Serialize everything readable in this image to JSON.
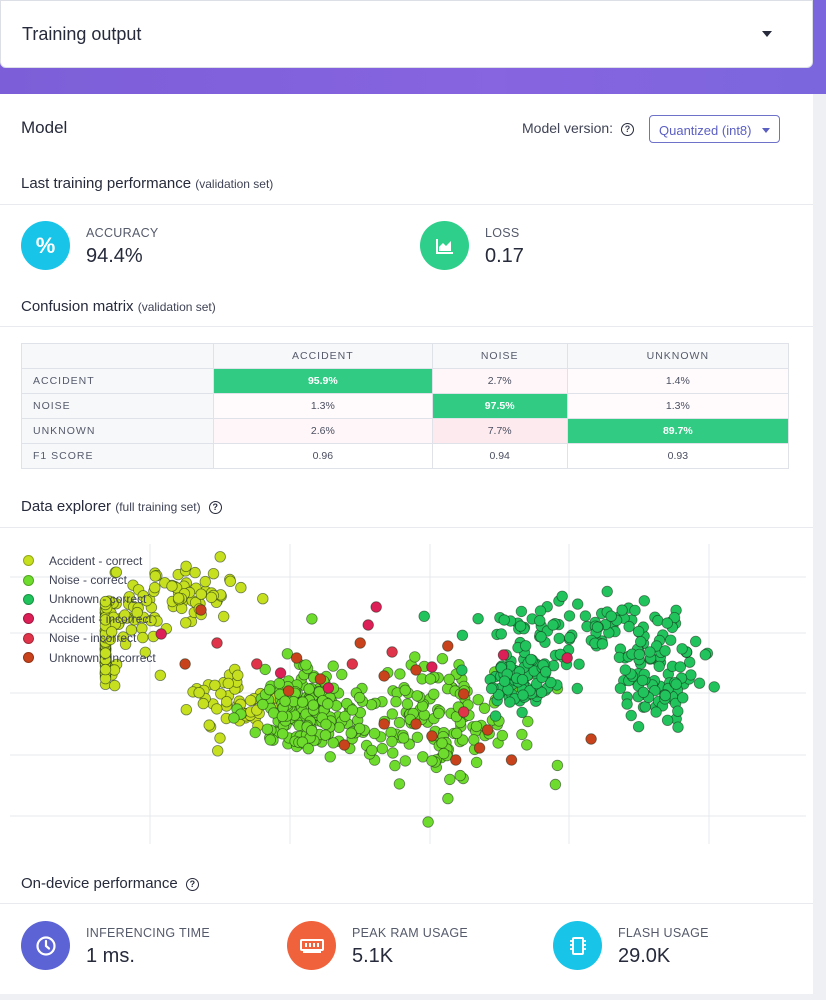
{
  "header": {
    "title": "Training output"
  },
  "model": {
    "title": "Model",
    "version_label": "Model version:",
    "version_value": "Quantized (int8)"
  },
  "last_training": {
    "title": "Last training performance",
    "subtitle": "(validation set)",
    "accuracy_label": "ACCURACY",
    "accuracy_value": "94.4%",
    "loss_label": "LOSS",
    "loss_value": "0.17"
  },
  "confusion": {
    "title": "Confusion matrix",
    "subtitle": "(validation set)",
    "columns": [
      "ACCIDENT",
      "NOISE",
      "UNKNOWN"
    ],
    "rows": [
      {
        "label": "ACCIDENT",
        "cells": [
          "95.9%",
          "2.7%",
          "1.4%"
        ]
      },
      {
        "label": "NOISE",
        "cells": [
          "1.3%",
          "97.5%",
          "1.3%"
        ]
      },
      {
        "label": "UNKNOWN",
        "cells": [
          "2.6%",
          "7.7%",
          "89.7%"
        ]
      },
      {
        "label": "F1 SCORE",
        "cells": [
          "0.96",
          "0.94",
          "0.93"
        ]
      }
    ]
  },
  "explorer": {
    "title": "Data explorer",
    "subtitle": "(full training set)",
    "legend": [
      {
        "label": "Accident - correct",
        "color": "#c6df1f"
      },
      {
        "label": "Noise - correct",
        "color": "#6edc2c"
      },
      {
        "label": "Unknown - correct",
        "color": "#21c35c"
      },
      {
        "label": "Accident - incorrect",
        "color": "#dc1f56"
      },
      {
        "label": "Noise - incorrect",
        "color": "#e0344b"
      },
      {
        "label": "Unknown - incorrect",
        "color": "#c8431c"
      }
    ]
  },
  "chart_data": {
    "type": "scatter",
    "title": "Data explorer (full training set)",
    "xlabel": "",
    "ylabel": "",
    "series": [
      {
        "name": "Accident - correct",
        "color": "#c6df1f",
        "cluster": [
          [
            0.09,
            0.62,
            0.06,
            0.09
          ],
          [
            0.22,
            0.84,
            0.07,
            0.08
          ],
          [
            0.14,
            0.75,
            0.07,
            0.08
          ],
          [
            0.28,
            0.48,
            0.06,
            0.08
          ]
        ],
        "count": 230
      },
      {
        "name": "Noise - correct",
        "color": "#6edc2c",
        "cluster": [
          [
            0.52,
            0.42,
            0.12,
            0.17
          ],
          [
            0.37,
            0.45,
            0.06,
            0.12
          ]
        ],
        "count": 330
      },
      {
        "name": "Unknown - correct",
        "color": "#21c35c",
        "cluster": [
          [
            0.72,
            0.72,
            0.11,
            0.09
          ],
          [
            0.82,
            0.55,
            0.06,
            0.14
          ],
          [
            0.64,
            0.55,
            0.05,
            0.09
          ]
        ],
        "count": 260
      },
      {
        "name": "Accident - incorrect",
        "color": "#dc1f56",
        "points": [
          [
            0.46,
            0.79
          ],
          [
            0.34,
            0.57
          ],
          [
            0.53,
            0.59
          ],
          [
            0.62,
            0.63
          ],
          [
            0.7,
            0.62
          ],
          [
            0.19,
            0.7
          ],
          [
            0.4,
            0.52
          ],
          [
            0.45,
            0.73
          ]
        ]
      },
      {
        "name": "Noise - incorrect",
        "color": "#e0344b",
        "points": [
          [
            0.43,
            0.6
          ],
          [
            0.48,
            0.64
          ],
          [
            0.57,
            0.44
          ],
          [
            0.31,
            0.6
          ],
          [
            0.26,
            0.67
          ]
        ]
      },
      {
        "name": "Unknown - incorrect",
        "color": "#c8431c",
        "points": [
          [
            0.22,
            0.6
          ],
          [
            0.36,
            0.62
          ],
          [
            0.39,
            0.55
          ],
          [
            0.47,
            0.56
          ],
          [
            0.51,
            0.58
          ],
          [
            0.55,
            0.66
          ],
          [
            0.57,
            0.5
          ],
          [
            0.51,
            0.4
          ],
          [
            0.47,
            0.4
          ],
          [
            0.42,
            0.33
          ],
          [
            0.53,
            0.36
          ],
          [
            0.6,
            0.38
          ],
          [
            0.56,
            0.28
          ],
          [
            0.63,
            0.28
          ],
          [
            0.73,
            0.35
          ],
          [
            0.35,
            0.51
          ],
          [
            0.44,
            0.67
          ],
          [
            0.59,
            0.32
          ],
          [
            0.24,
            0.78
          ]
        ]
      }
    ],
    "grid": true,
    "legend_position": "top-left"
  },
  "on_device": {
    "title": "On-device performance",
    "inference_label": "INFERENCING TIME",
    "inference_value": "1 ms.",
    "ram_label": "PEAK RAM USAGE",
    "ram_value": "5.1K",
    "flash_label": "FLASH USAGE",
    "flash_value": "29.0K"
  },
  "colors": {
    "accent_purple": "#7c5fd8",
    "accuracy_icon": "#18c4e8",
    "loss_icon": "#2ecf8b",
    "inference_icon": "#5c63d4",
    "ram_icon": "#f0623b",
    "flash_icon": "#18c4e8",
    "matrix_highlight": "#31cb84"
  }
}
